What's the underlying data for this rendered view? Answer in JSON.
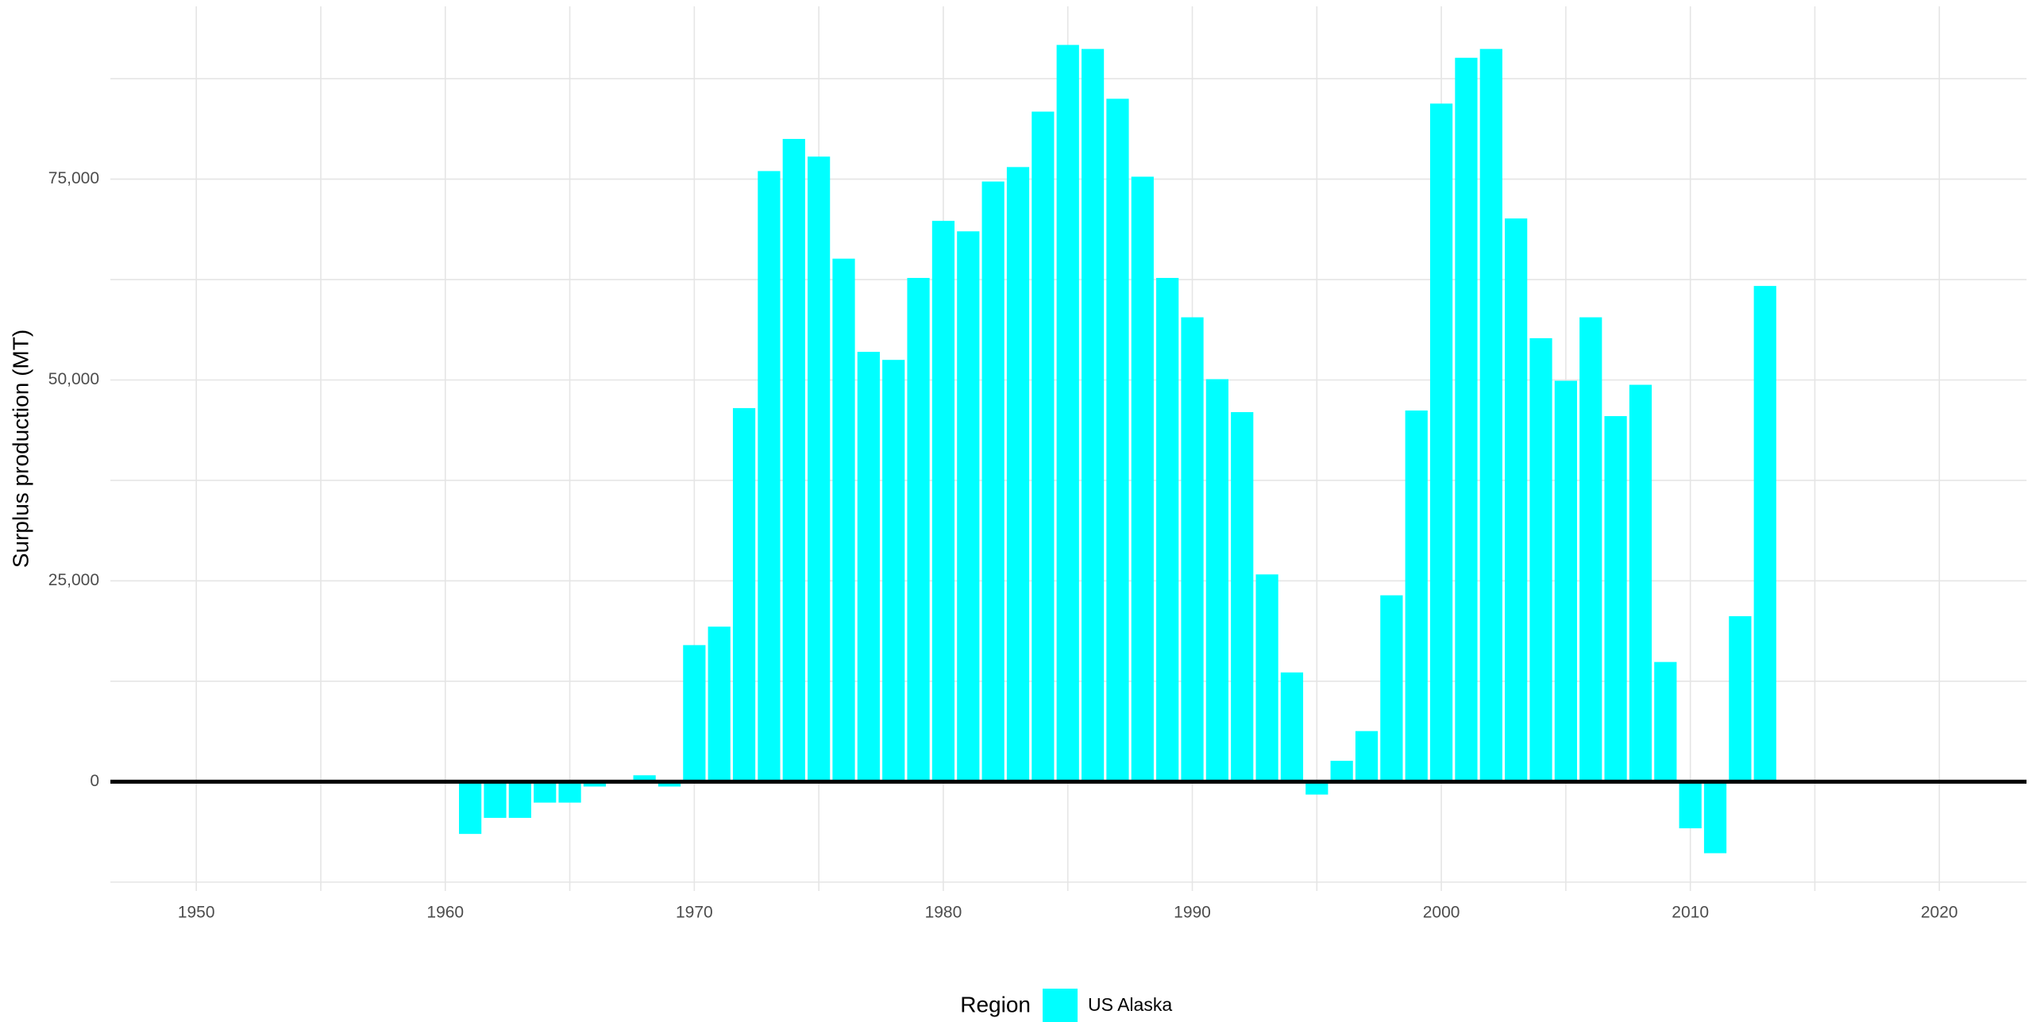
{
  "chart_data": {
    "type": "bar",
    "y_label": "Surplus production (MT)",
    "legend_title": "Region",
    "legend_position": "bottom",
    "grid": true,
    "hline": 0,
    "x": [
      1961,
      1962,
      1963,
      1964,
      1965,
      1966,
      1968,
      1969,
      1970,
      1971,
      1972,
      1973,
      1974,
      1975,
      1976,
      1977,
      1978,
      1979,
      1980,
      1981,
      1982,
      1983,
      1984,
      1985,
      1986,
      1987,
      1988,
      1989,
      1990,
      1991,
      1992,
      1993,
      1994,
      1995,
      1996,
      1997,
      1998,
      1999,
      2000,
      2001,
      2002,
      2003,
      2004,
      2005,
      2006,
      2007,
      2008,
      2009,
      2010,
      2011,
      2012,
      2013
    ],
    "series": [
      {
        "name": "US Alaska",
        "color": "#00FFFF",
        "values": [
          -6500,
          -4500,
          -4500,
          -2600,
          -2600,
          -600,
          800,
          -600,
          17000,
          19300,
          46500,
          76000,
          80000,
          77800,
          65100,
          53500,
          52500,
          62700,
          69800,
          68500,
          74700,
          76500,
          83400,
          91700,
          91200,
          85000,
          75300,
          62700,
          57800,
          50100,
          46000,
          25800,
          13600,
          -1600,
          2600,
          6300,
          23200,
          46200,
          84400,
          90100,
          91200,
          70100,
          55200,
          49900,
          57800,
          45500,
          49400,
          14900,
          -5800,
          -8900,
          20600,
          61700
        ]
      }
    ],
    "xlim": [
      1946.55,
      2023.5
    ],
    "xticks": [
      1950,
      1960,
      1970,
      1980,
      1990,
      2000,
      2010,
      2020
    ],
    "ylim": [
      -13600,
      96500
    ],
    "yticks": [
      0,
      {
        "value": 25000,
        "label": "25,000"
      },
      {
        "value": 50000,
        "label": "50,000"
      },
      {
        "value": 75000,
        "label": "75,000"
      }
    ]
  }
}
